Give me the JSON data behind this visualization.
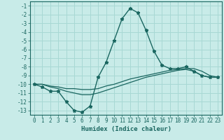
{
  "xlabel": "Humidex (Indice chaleur)",
  "background_color": "#c8ebe8",
  "grid_color": "#a8d8d4",
  "line_color": "#1a6660",
  "xlim": [
    -0.5,
    23.5
  ],
  "ylim": [
    -13.5,
    -0.5
  ],
  "x": [
    0,
    1,
    2,
    3,
    4,
    5,
    6,
    7,
    8,
    9,
    10,
    11,
    12,
    13,
    14,
    15,
    16,
    17,
    18,
    19,
    20,
    21,
    22,
    23
  ],
  "y_main": [
    -10.0,
    -10.3,
    -10.8,
    -10.8,
    -12.0,
    -13.0,
    -13.2,
    -12.5,
    -9.2,
    -7.5,
    -5.0,
    -2.5,
    -1.3,
    -1.8,
    -3.8,
    -6.2,
    -7.8,
    -8.2,
    -8.2,
    -8.0,
    -8.5,
    -9.0,
    -9.2,
    -9.2
  ],
  "y_upper": [
    -10.0,
    -10.0,
    -10.2,
    -10.3,
    -10.5,
    -10.5,
    -10.6,
    -10.6,
    -10.5,
    -10.2,
    -10.0,
    -9.7,
    -9.4,
    -9.2,
    -9.0,
    -8.8,
    -8.6,
    -8.4,
    -8.3,
    -8.2,
    -8.2,
    -8.5,
    -9.0,
    -9.2
  ],
  "y_lower": [
    -10.0,
    -10.0,
    -10.3,
    -10.5,
    -10.8,
    -11.0,
    -11.2,
    -11.2,
    -11.0,
    -10.7,
    -10.4,
    -10.1,
    -9.8,
    -9.5,
    -9.2,
    -9.0,
    -8.8,
    -8.6,
    -8.4,
    -8.3,
    -8.5,
    -9.0,
    -9.2,
    -9.2
  ],
  "yticks": [
    -1,
    -2,
    -3,
    -4,
    -5,
    -6,
    -7,
    -8,
    -9,
    -10,
    -11,
    -12,
    -13
  ],
  "xticks": [
    0,
    1,
    2,
    3,
    4,
    5,
    6,
    7,
    8,
    9,
    10,
    11,
    12,
    13,
    14,
    15,
    16,
    17,
    18,
    19,
    20,
    21,
    22,
    23
  ]
}
